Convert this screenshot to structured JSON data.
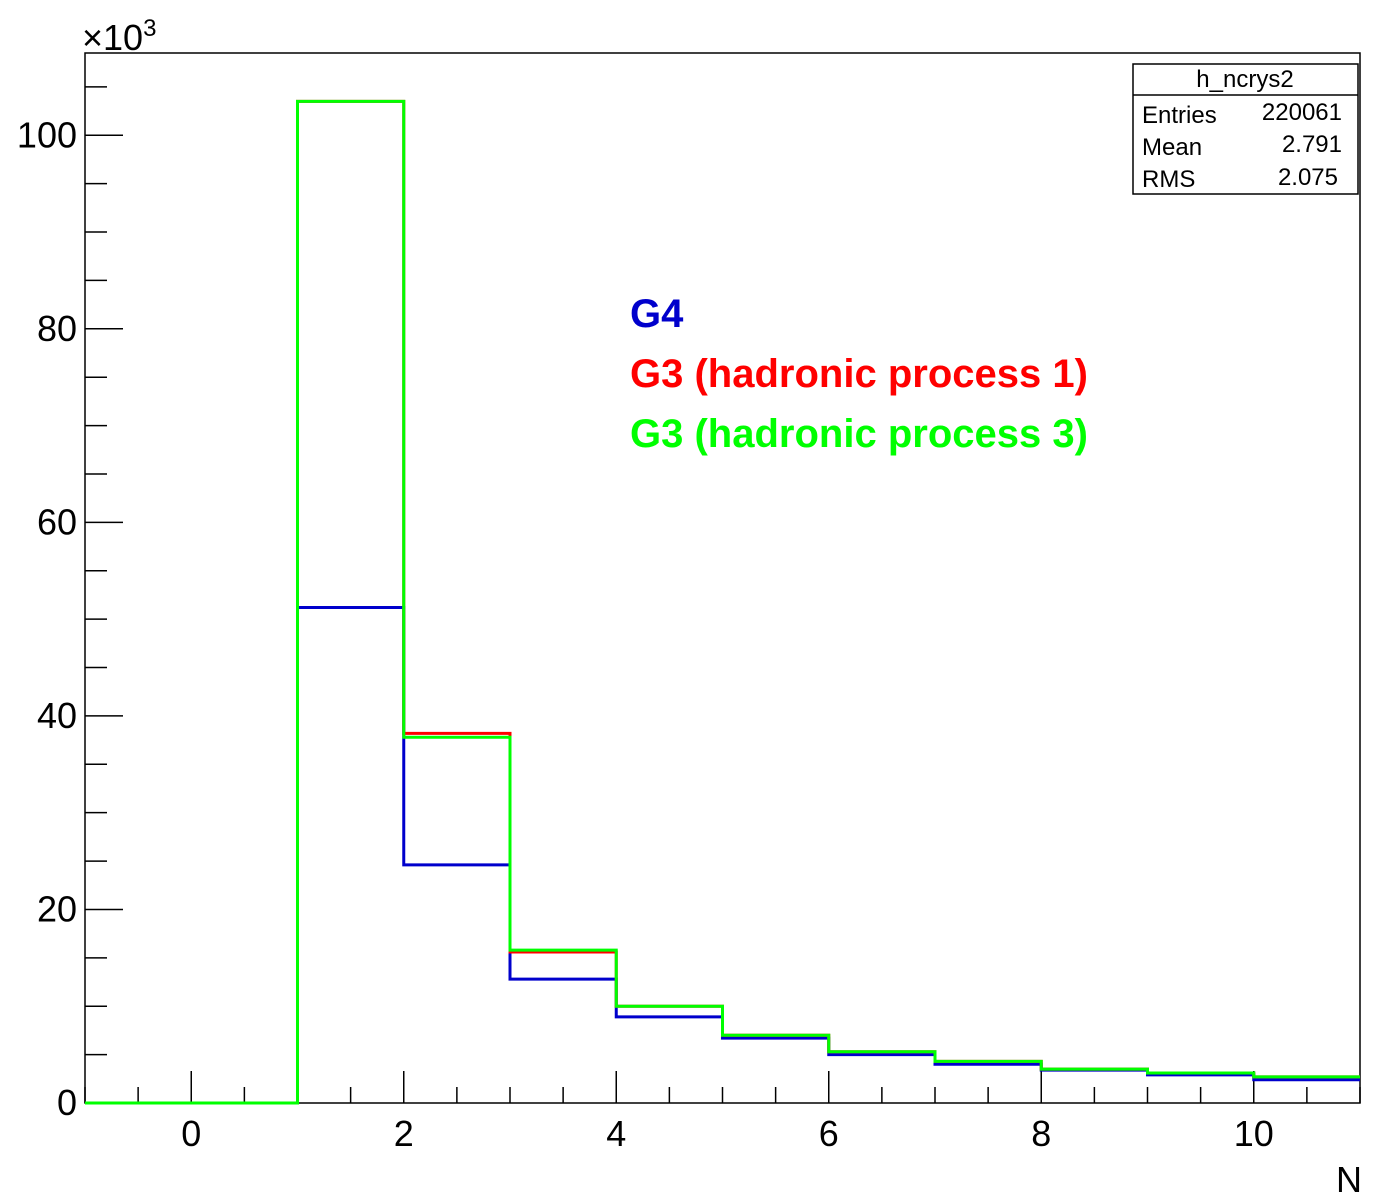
{
  "chart_data": {
    "type": "line",
    "title": "",
    "xlabel": "N",
    "ylabel": "",
    "y_multiplier_label": "×10",
    "y_multiplier_exp": "3",
    "xlim": [
      -1,
      11
    ],
    "ylim": [
      0,
      108.5
    ],
    "x_ticks": [
      0,
      2,
      4,
      6,
      8,
      10
    ],
    "x_tick_labels": [
      "0",
      "2",
      "4",
      "6",
      "8",
      "10"
    ],
    "y_ticks": [
      0,
      20,
      40,
      60,
      80,
      100
    ],
    "y_tick_labels": [
      "0",
      "20",
      "40",
      "60",
      "80",
      "100"
    ],
    "bin_edges": [
      -1,
      0,
      1,
      2,
      3,
      4,
      5,
      6,
      7,
      8,
      9,
      10,
      11
    ],
    "series": [
      {
        "name": "G4",
        "color": "#0000cc",
        "values": [
          0,
          0,
          51.2,
          24.6,
          12.8,
          8.9,
          6.7,
          5.0,
          4.0,
          3.4,
          2.9,
          2.4
        ]
      },
      {
        "name": "G3 (hadronic process 1)",
        "color": "#ff0000",
        "values": [
          0,
          0,
          103.5,
          38.2,
          15.6,
          10.0,
          7.0,
          5.3,
          4.3,
          3.5,
          3.1,
          2.7
        ]
      },
      {
        "name": "G3 (hadronic process 3)",
        "color": "#00ff00",
        "values": [
          0,
          0,
          103.5,
          37.8,
          15.8,
          10.0,
          7.0,
          5.3,
          4.3,
          3.5,
          3.1,
          2.7
        ]
      }
    ],
    "legend_placement": "upper-middle-right",
    "grid": false,
    "stats_box": {
      "title": "h_ncrys2",
      "rows": [
        {
          "label": "Entries",
          "value": "220061"
        },
        {
          "label": "Mean",
          "value": "2.791"
        },
        {
          "label": "RMS",
          "value": "2.075"
        }
      ]
    }
  }
}
